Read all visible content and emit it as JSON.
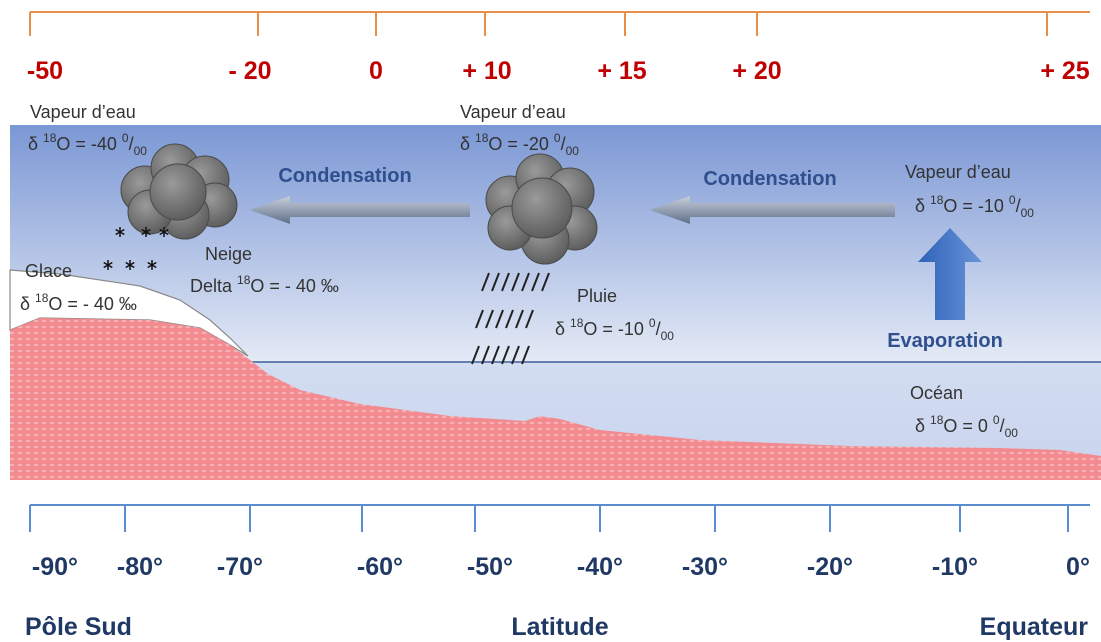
{
  "top_scale": {
    "ticks": [
      "-50",
      "- 20",
      "0",
      "+ 10",
      "+ 15",
      "+ 20",
      "+ 25"
    ]
  },
  "bottom_scale": {
    "ticks": [
      "-90°",
      "-80°",
      "-70°",
      "-60°",
      "-50°",
      "-40°",
      "-30°",
      "-20°",
      "-10°",
      "0°"
    ],
    "left": "Pôle Sud",
    "center": "Latitude",
    "right": "Equateur"
  },
  "arrows": {
    "condensation_left": "Condensation",
    "condensation_right": "Condensation",
    "evaporation": "Evaporation"
  },
  "labels": {
    "vapor_left": {
      "title": "Vapeur d’eau",
      "formula": {
        "prefix": "δ ",
        "iso": "18",
        "body": "O = -40 ",
        "num": "0",
        "slash": "/",
        "den": "00"
      }
    },
    "vapor_center": {
      "title": "Vapeur d’eau",
      "formula": {
        "prefix": "δ ",
        "iso": "18",
        "body": "O = -20 ",
        "num": "0",
        "slash": "/",
        "den": "00"
      }
    },
    "vapor_right": {
      "title": "Vapeur d’eau",
      "formula": {
        "prefix": "δ ",
        "iso": "18",
        "body": "O =  -10 ",
        "num": "0",
        "slash": "/",
        "den": "00"
      }
    },
    "snow": {
      "title": "Neige",
      "formula": {
        "prefix": "Delta ",
        "iso": "18",
        "body": "O = - 40 ‰"
      }
    },
    "ice": {
      "title": "Glace",
      "formula": {
        "prefix": "δ ",
        "iso": "18",
        "body": "O = - 40 ‰"
      }
    },
    "rain": {
      "title": "Pluie",
      "formula": {
        "prefix": "δ ",
        "iso": "18",
        "body": "O =   -10 ",
        "num": "0",
        "slash": "/",
        "den": "00"
      }
    },
    "ocean": {
      "title": "Océan",
      "formula": {
        "prefix": "δ ",
        "iso": "18",
        "body": "O =  0 ",
        "num": "0",
        "slash": "/",
        "den": "00"
      }
    }
  }
}
